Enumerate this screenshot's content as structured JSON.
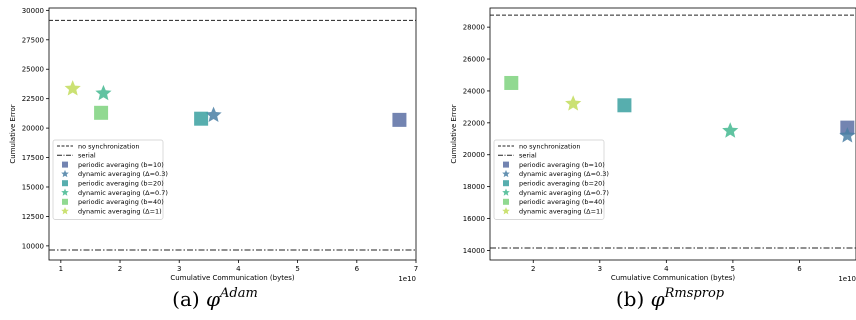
{
  "chart_data": [
    {
      "type": "scatter",
      "title": "",
      "caption_prefix": "(a) ",
      "caption_symbol": "φ",
      "caption_super": "Adam",
      "xlabel": "Cumulative Communication (bytes)",
      "ylabel": "Cumulative Error",
      "x_multiplier_label": "1e10",
      "xlim": [
        0.8,
        7.0
      ],
      "ylim": [
        8800,
        30200
      ],
      "xticks": [
        1,
        2,
        3,
        4,
        5,
        6,
        7
      ],
      "yticks": [
        10000,
        12500,
        15000,
        17500,
        20000,
        22500,
        25000,
        27500,
        30000
      ],
      "hlines": [
        {
          "name": "no synchronization",
          "y": 29150,
          "style": "dashed"
        },
        {
          "name": "serial",
          "y": 9650,
          "style": "dashdot"
        }
      ],
      "series": [
        {
          "name": "periodic averaging (b=10)",
          "marker": "square",
          "color": "#5a6fa3",
          "x": 6.72,
          "y": 20700
        },
        {
          "name": "dynamic averaging (Δ=0.3)",
          "marker": "star",
          "color": "#4a7fa5",
          "x": 3.58,
          "y": 21100
        },
        {
          "name": "periodic averaging (b=20)",
          "marker": "square",
          "color": "#3aa0a0",
          "x": 3.37,
          "y": 20800
        },
        {
          "name": "dynamic averaging (Δ=0.7)",
          "marker": "star",
          "color": "#44b890",
          "x": 1.72,
          "y": 22950
        },
        {
          "name": "periodic averaging (b=40)",
          "marker": "square",
          "color": "#7ed27e",
          "x": 1.68,
          "y": 21300
        },
        {
          "name": "dynamic averaging (Δ=1)",
          "marker": "star",
          "color": "#c2dc5a",
          "x": 1.2,
          "y": 23350
        }
      ],
      "legend_position": "center-left"
    },
    {
      "type": "scatter",
      "title": "",
      "caption_prefix": "(b) ",
      "caption_symbol": "φ",
      "caption_super": "Rmsprop",
      "xlabel": "Cumulative Communication (bytes)",
      "ylabel": "Cumulative Error",
      "x_multiplier_label": "1e10",
      "xlim": [
        1.35,
        6.85
      ],
      "ylim": [
        13400,
        29200
      ],
      "xticks": [
        2,
        3,
        4,
        5,
        6
      ],
      "yticks": [
        14000,
        16000,
        18000,
        20000,
        22000,
        24000,
        26000,
        28000
      ],
      "hlines": [
        {
          "name": "no synchronization",
          "y": 28750,
          "style": "dashed"
        },
        {
          "name": "serial",
          "y": 14150,
          "style": "dashdot"
        }
      ],
      "series": [
        {
          "name": "periodic averaging (b=10)",
          "marker": "square",
          "color": "#5a6fa3",
          "x": 6.72,
          "y": 21700
        },
        {
          "name": "dynamic averaging (Δ=0.3)",
          "marker": "star",
          "color": "#4a7fa5",
          "x": 6.72,
          "y": 21200
        },
        {
          "name": "periodic averaging (b=20)",
          "marker": "square",
          "color": "#3aa0a0",
          "x": 3.37,
          "y": 23100
        },
        {
          "name": "dynamic averaging (Δ=0.7)",
          "marker": "star",
          "color": "#44b890",
          "x": 4.96,
          "y": 21500
        },
        {
          "name": "periodic averaging (b=40)",
          "marker": "square",
          "color": "#7ed27e",
          "x": 1.67,
          "y": 24500
        },
        {
          "name": "dynamic averaging (Δ=1)",
          "marker": "star",
          "color": "#c2dc5a",
          "x": 2.6,
          "y": 23200
        }
      ],
      "legend_position": "center-left"
    }
  ]
}
